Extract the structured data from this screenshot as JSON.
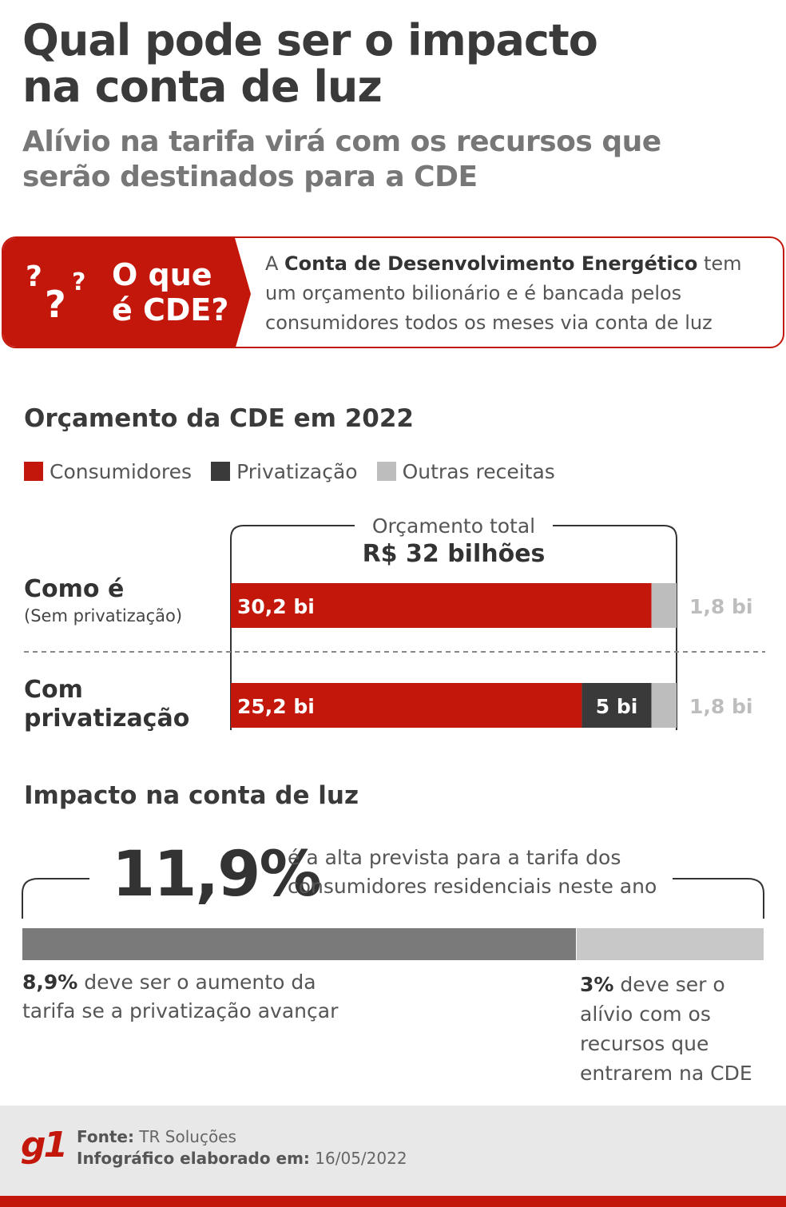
{
  "header": {
    "title_line1": "Qual pode ser o impacto",
    "title_line2": "na conta de luz",
    "subtitle_line1": "Alívio na tarifa virá com os recursos que",
    "subtitle_line2": "serão destinados para a CDE"
  },
  "cde_box": {
    "question_line1": "O que",
    "question_line2": "é CDE?",
    "qmark": "?",
    "text_prefix": "A ",
    "text_bold": "Conta de Desenvolvimento Energético",
    "text_suffix": " tem",
    "text_line2": "um orçamento bilionário e é bancada pelos",
    "text_line3": "consumidores todos os meses via conta de luz"
  },
  "colors": {
    "red": "#c4170c",
    "dark": "#3a3a3a",
    "light_gray": "#bdbdbd",
    "mid_gray": "#7a7a7a",
    "pale_gray": "#c8c8c8"
  },
  "chart_data": [
    {
      "type": "bar",
      "orientation": "horizontal-stacked",
      "title": "Orçamento da CDE em 2022",
      "legend": [
        "Consumidores",
        "Privatização",
        "Outras receitas"
      ],
      "total_label": "Orçamento total",
      "total_value": "R$ 32 bilhões",
      "total": 32,
      "categories": [
        "Como é (Sem privatização)",
        "Com privatização"
      ],
      "series": [
        {
          "name": "Consumidores",
          "values": [
            30.2,
            25.2
          ]
        },
        {
          "name": "Privatização",
          "values": [
            0,
            5
          ]
        },
        {
          "name": "Outras receitas",
          "values": [
            1.8,
            1.8
          ]
        }
      ],
      "rows": [
        {
          "label": "Como é",
          "sublabel": "(Sem privatização)",
          "label_line2": "",
          "consumidores_label": "30,2 bi",
          "privatizacao_label": "",
          "outras_label": "1,8 bi"
        },
        {
          "label": "Com",
          "sublabel": "",
          "label_line2": "privatização",
          "consumidores_label": "25,2 bi",
          "privatizacao_label": "5 bi",
          "outras_label": "1,8 bi"
        }
      ]
    },
    {
      "type": "bar",
      "orientation": "horizontal-stacked",
      "title": "Impacto na conta de luz",
      "total_pct": "11,9%",
      "total_desc_line1": "é a alta prevista para a tarifa dos",
      "total_desc_line2": "consumidores residenciais neste ano",
      "total": 11.9,
      "series": [
        {
          "name": "aumento com privatização",
          "value": 8.9
        },
        {
          "name": "alívio CDE",
          "value": 3
        }
      ],
      "left_note_bold": "8,9%",
      "left_note_rest": " deve ser o aumento da",
      "left_note_line2": "tarifa se a privatização avançar",
      "right_note_bold": "3%",
      "right_note_rest": " deve ser o",
      "right_note_line2": "alívio com os",
      "right_note_line3": "recursos que",
      "right_note_line4": "entrarem na CDE"
    }
  ],
  "footer": {
    "logo": "g1",
    "source_label": "Fonte:",
    "source_value": " TR Soluções",
    "date_label": "Infográfico elaborado em:",
    "date_value": " 16/05/2022"
  }
}
